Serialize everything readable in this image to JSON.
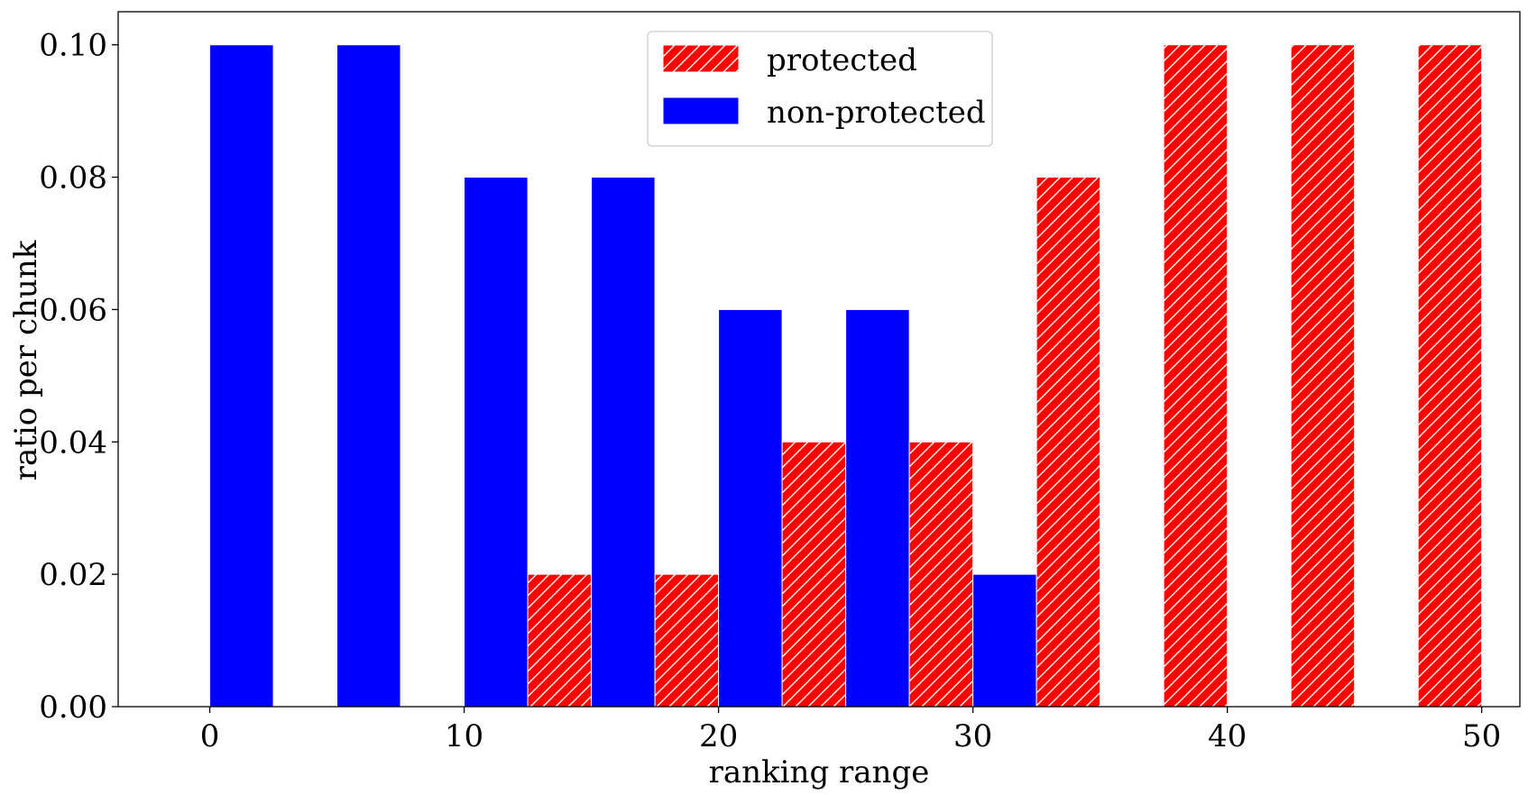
{
  "chart_data": {
    "type": "bar",
    "title": "",
    "xlabel": "ranking range",
    "ylabel": "ratio per chunk",
    "xlim": [
      -3.6,
      51.5
    ],
    "ylim": [
      0,
      0.105
    ],
    "x_ticks": [
      0,
      10,
      20,
      30,
      40,
      50
    ],
    "y_ticks": [
      0.0,
      0.02,
      0.04,
      0.06,
      0.08,
      0.1
    ],
    "x_tick_labels": [
      "0",
      "10",
      "20",
      "30",
      "40",
      "50"
    ],
    "y_tick_labels": [
      "0.00",
      "0.02",
      "0.04",
      "0.06",
      "0.08",
      "0.10"
    ],
    "bins": [
      [
        0,
        5
      ],
      [
        5,
        10
      ],
      [
        10,
        15
      ],
      [
        15,
        20
      ],
      [
        20,
        25
      ],
      [
        25,
        30
      ],
      [
        30,
        35
      ],
      [
        35,
        40
      ],
      [
        40,
        45
      ],
      [
        45,
        50
      ]
    ],
    "series": [
      {
        "name": "protected",
        "color": "#ff0000",
        "pattern": "hatch",
        "values": [
          0.0,
          0.0,
          0.02,
          0.02,
          0.04,
          0.04,
          0.08,
          0.1,
          0.1,
          0.1
        ]
      },
      {
        "name": "non-protected",
        "color": "#0000ff",
        "pattern": "solid",
        "values": [
          0.1,
          0.1,
          0.08,
          0.08,
          0.06,
          0.06,
          0.02,
          0.0,
          0.0,
          0.0
        ]
      }
    ],
    "legend_position": "top-center",
    "grid": false
  }
}
